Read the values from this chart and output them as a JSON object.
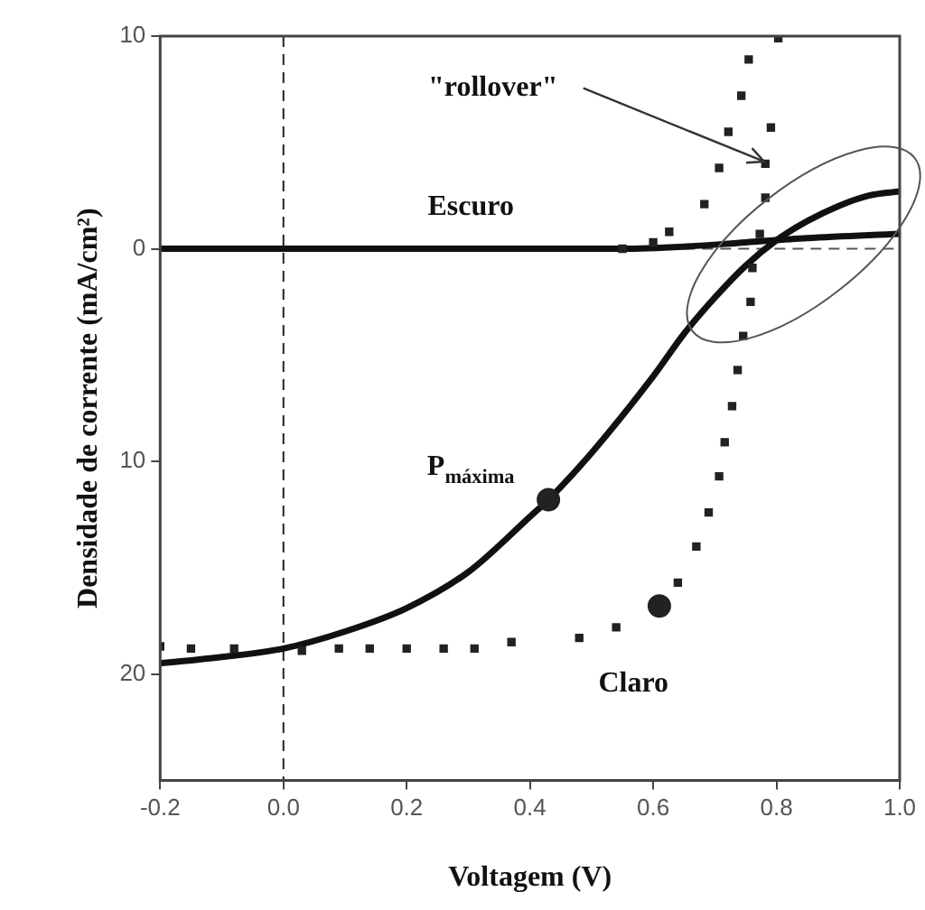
{
  "chart_data": {
    "type": "line",
    "xlabel": "Voltagem (V)",
    "ylabel": "Densidade de corrente (mA/cm²)",
    "xlim": [
      -0.2,
      1.0
    ],
    "xticks": [
      {
        "value": -0.2,
        "label": "-0.2"
      },
      {
        "value": 0,
        "label": "0.0"
      },
      {
        "value": 0.2,
        "label": "0.2"
      },
      {
        "value": 0.4,
        "label": "0.4"
      },
      {
        "value": 0.6,
        "label": "0.6"
      },
      {
        "value": 0.8,
        "label": "0.8"
      },
      {
        "value": 1.0,
        "label": "1.0"
      }
    ],
    "ylim": [
      -25,
      10
    ],
    "yticks": [
      10,
      0,
      {
        "value": -10,
        "label": "10"
      },
      {
        "value": -20,
        "label": "20"
      }
    ],
    "grid": false,
    "legend": false,
    "series": [
      {
        "color": "#111111",
        "marker": "none",
        "line_style": "solid",
        "x": [
          -0.2,
          0.55,
          0.65,
          0.75,
          0.85,
          1.0
        ],
        "values": [
          0,
          0,
          0.1,
          0.3,
          0.5,
          0.7
        ]
      },
      {
        "color": "#111111",
        "marker": "none",
        "line_style": "solid",
        "x": [
          -0.2,
          -0.1,
          0,
          0.1,
          0.2,
          0.3,
          0.4,
          0.43,
          0.5,
          0.6,
          0.65,
          0.7,
          0.75,
          0.8,
          0.85,
          0.9,
          0.95,
          1.0
        ],
        "values": [
          -19.5,
          -19.2,
          -18.8,
          -18.0,
          -16.9,
          -15.2,
          -12.6,
          -11.8,
          -9.6,
          -6.0,
          -4.0,
          -2.3,
          -0.8,
          0.4,
          1.3,
          2.0,
          2.5,
          2.7
        ]
      },
      {
        "type": "scatter",
        "color": "#222222",
        "marker": "square",
        "x": [
          -0.2,
          -0.15,
          -0.08,
          0.03,
          0.09,
          0.14,
          0.2,
          0.26,
          0.31,
          0.37,
          0.48,
          0.54,
          0.64,
          0.67,
          0.69,
          0.707,
          0.716,
          0.728,
          0.737,
          0.746,
          0.758,
          0.761,
          0.773,
          0.782,
          0.782,
          0.791,
          0.803
        ],
        "values": [
          -18.7,
          -18.8,
          -18.8,
          -18.9,
          -18.8,
          -18.8,
          -18.8,
          -18.8,
          -18.8,
          -18.5,
          -18.3,
          -17.8,
          -15.7,
          -14.0,
          -12.4,
          -10.7,
          -9.1,
          -7.4,
          -5.7,
          -4.1,
          -2.5,
          -0.9,
          0.7,
          2.4,
          4.0,
          5.7,
          9.9
        ]
      },
      {
        "type": "scatter",
        "color": "#222222",
        "marker": "square",
        "x": [
          0.55,
          0.6,
          0.626,
          0.683,
          0.707,
          0.722,
          0.743,
          0.755
        ],
        "values": [
          0,
          0.3,
          0.8,
          2.1,
          3.8,
          5.5,
          7.2,
          8.9
        ]
      },
      {
        "type": "scatter",
        "color": "#222222",
        "marker": "circle",
        "x": [
          0.43,
          0.61
        ],
        "values": [
          -11.8,
          -16.8
        ]
      }
    ],
    "ref_lines": [
      {
        "axis": "x",
        "value": 0,
        "line_style": "dashed",
        "color": "#222222"
      },
      {
        "axis": "y",
        "value": 0,
        "line_style": "dashed",
        "color": "#555555"
      }
    ],
    "annotations": [
      "Escuro",
      "Claro",
      "P$_{máxima}$",
      {
        "text": "\"rollover\"",
        "x": 0.78,
        "y": 4.1
      }
    ]
  }
}
